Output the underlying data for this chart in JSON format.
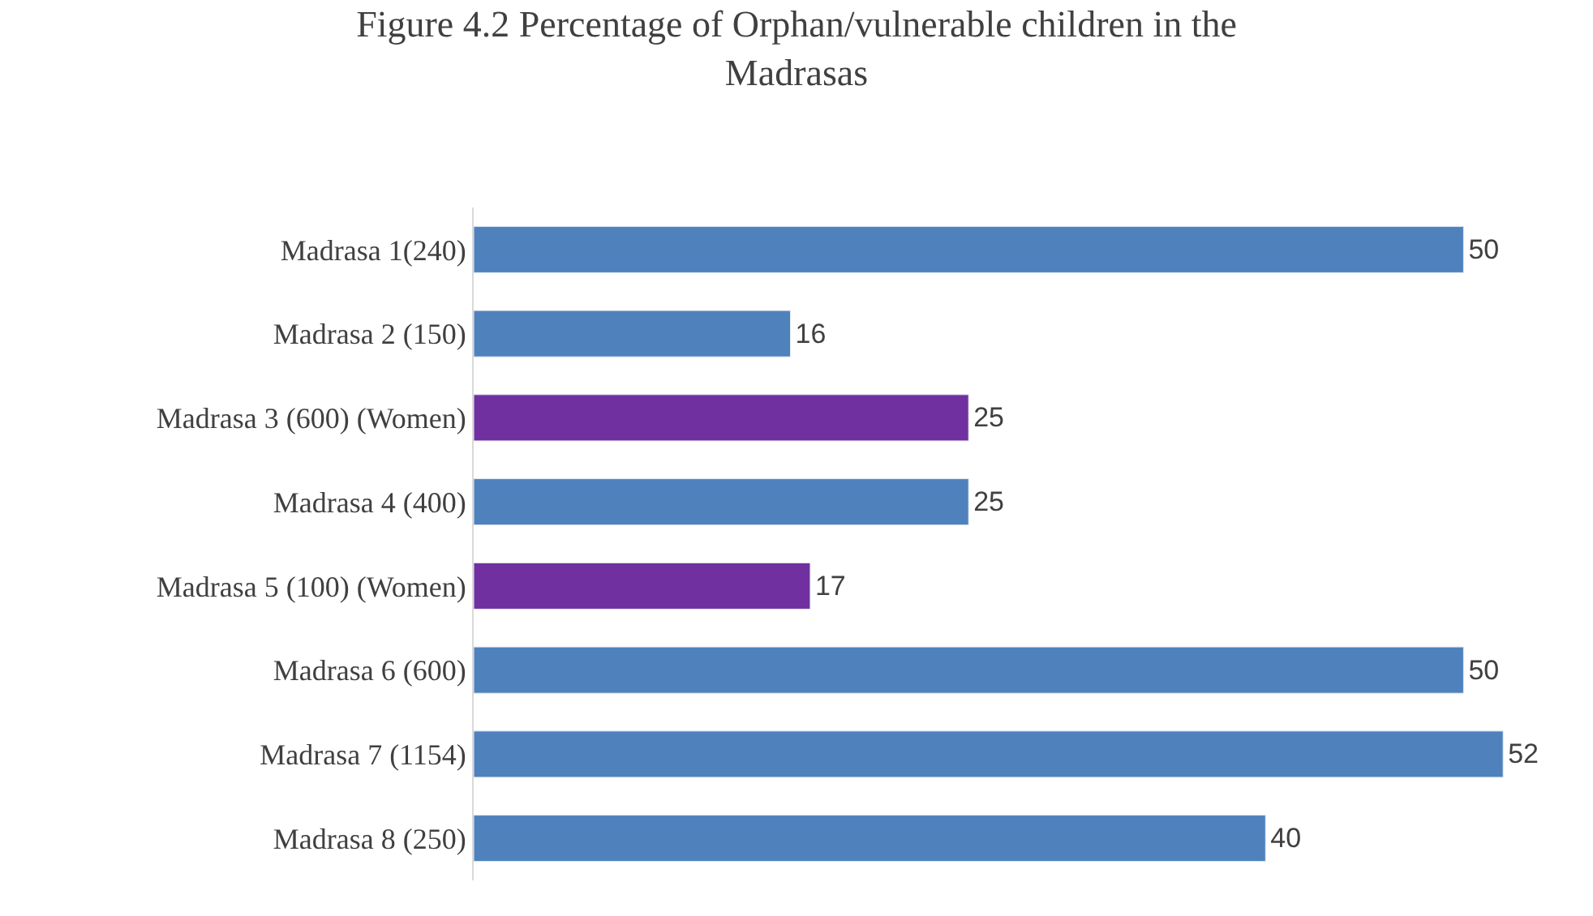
{
  "chart_data": {
    "type": "bar",
    "orientation": "horizontal",
    "title": "Figure 4.2 Percentage of Orphan/vulnerable children in the Madrasas",
    "categories": [
      "Madrasa 1(240)",
      "Madrasa 2 (150)",
      "Madrasa 3 (600) (Women)",
      "Madrasa 4 (400)",
      "Madrasa 5 (100) (Women)",
      "Madrasa 6 (600)",
      "Madrasa 7 (1154)",
      "Madrasa 8 (250)"
    ],
    "values": [
      50,
      16,
      25,
      25,
      17,
      50,
      52,
      40
    ],
    "colors": [
      "#4f81bd",
      "#4f81bd",
      "#7030a0",
      "#4f81bd",
      "#7030a0",
      "#4f81bd",
      "#4f81bd",
      "#4f81bd"
    ],
    "tick_labels": "y",
    "data_labels": true
  }
}
